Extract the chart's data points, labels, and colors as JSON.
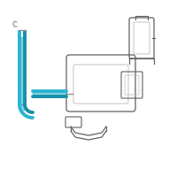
{
  "background_color": "#ffffff",
  "border_color": "#dddddd",
  "tube_color": "#2ab5d0",
  "tube_color2": "#1890a8",
  "parts_color": "#909090",
  "parts_light": "#b8b8b8",
  "parts_dark": "#606060",
  "figsize": [
    2.0,
    2.0
  ],
  "dpi": 100
}
